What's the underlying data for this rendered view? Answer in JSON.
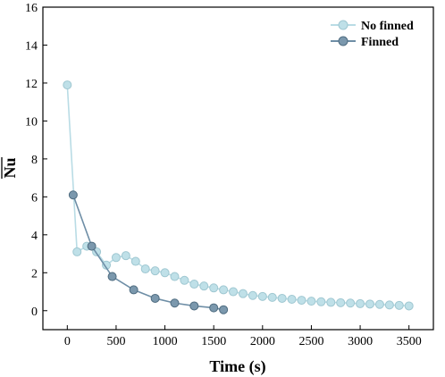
{
  "chart_data": {
    "type": "line",
    "xlabel": "Time (s)",
    "ylabel": "Nu",
    "ylabel_overline": true,
    "xlim": [
      -250,
      3750
    ],
    "ylim": [
      -1,
      16
    ],
    "xticks": [
      0,
      500,
      1000,
      1500,
      2000,
      2500,
      3000,
      3500
    ],
    "yticks": [
      0,
      2,
      4,
      6,
      8,
      10,
      12,
      14,
      16
    ],
    "grid": false,
    "legend_position": "top-right",
    "series": [
      {
        "name": "No finned",
        "color": "#b9dce5",
        "marker_color": "#bfe0e8",
        "x": [
          0,
          100,
          200,
          300,
          400,
          500,
          600,
          700,
          800,
          900,
          1000,
          1100,
          1200,
          1300,
          1400,
          1500,
          1600,
          1700,
          1800,
          1900,
          2000,
          2100,
          2200,
          2300,
          2400,
          2500,
          2600,
          2700,
          2800,
          2900,
          3000,
          3100,
          3200,
          3300,
          3400,
          3500
        ],
        "y": [
          11.9,
          3.1,
          3.4,
          3.1,
          2.4,
          2.8,
          2.9,
          2.6,
          2.2,
          2.1,
          2.0,
          1.8,
          1.6,
          1.4,
          1.3,
          1.2,
          1.1,
          1.0,
          0.9,
          0.8,
          0.75,
          0.7,
          0.65,
          0.6,
          0.55,
          0.5,
          0.47,
          0.44,
          0.42,
          0.4,
          0.37,
          0.35,
          0.33,
          0.3,
          0.28,
          0.25
        ]
      },
      {
        "name": "Finned",
        "color": "#6e8ea6",
        "marker_color": "#7b98ad",
        "x": [
          60,
          250,
          460,
          680,
          900,
          1100,
          1300,
          1500,
          1600
        ],
        "y": [
          6.1,
          3.4,
          1.8,
          1.1,
          0.65,
          0.4,
          0.25,
          0.15,
          0.05
        ]
      }
    ]
  }
}
